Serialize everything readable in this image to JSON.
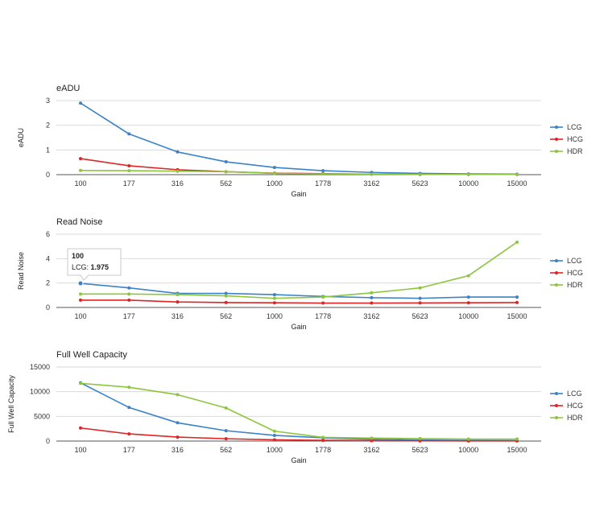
{
  "colors": {
    "LCG": "#3b82c8",
    "HCG": "#e02424",
    "HDR": "#8cc63f"
  },
  "chart_data": [
    {
      "type": "line",
      "title": "eADU",
      "xlabel": "Gain",
      "ylabel": "eADU",
      "categories": [
        "100",
        "177",
        "316",
        "562",
        "1000",
        "1778",
        "3162",
        "5623",
        "10000",
        "15000"
      ],
      "ylim": [
        0,
        3
      ],
      "yticks": [
        "0",
        "1",
        "2",
        "3"
      ],
      "series": [
        {
          "name": "LCG",
          "values": [
            2.9,
            1.65,
            0.92,
            0.52,
            0.29,
            0.16,
            0.09,
            0.05,
            0.03,
            0.02
          ]
        },
        {
          "name": "HCG",
          "values": [
            0.65,
            0.36,
            0.2,
            0.12,
            0.06,
            0.04,
            0.02,
            0.01,
            0.01,
            0.01
          ]
        },
        {
          "name": "HDR",
          "values": [
            0.17,
            0.16,
            0.14,
            0.12,
            0.05,
            0.03,
            0.02,
            0.01,
            0.01,
            0.01
          ]
        }
      ],
      "legend": "right"
    },
    {
      "type": "line",
      "title": "Read Noise",
      "xlabel": "Gain",
      "ylabel": "Read Noise",
      "categories": [
        "100",
        "177",
        "316",
        "562",
        "1000",
        "1778",
        "3162",
        "5623",
        "10000",
        "15000"
      ],
      "ylim": [
        0,
        6
      ],
      "yticks": [
        "0",
        "2",
        "4",
        "6"
      ],
      "series": [
        {
          "name": "LCG",
          "values": [
            1.975,
            1.6,
            1.15,
            1.15,
            1.05,
            0.9,
            0.8,
            0.75,
            0.85,
            0.85
          ]
        },
        {
          "name": "HCG",
          "values": [
            0.6,
            0.6,
            0.45,
            0.4,
            0.38,
            0.36,
            0.36,
            0.37,
            0.38,
            0.4
          ]
        },
        {
          "name": "HDR",
          "values": [
            1.1,
            1.1,
            1.05,
            0.95,
            0.75,
            0.85,
            1.2,
            1.6,
            2.6,
            5.35
          ]
        }
      ],
      "legend": "right",
      "tooltip": {
        "category": "100",
        "series": "LCG",
        "label": "LCG: ",
        "value": "1.975"
      }
    },
    {
      "type": "line",
      "title": "Full Well Capacity",
      "xlabel": "Gain",
      "ylabel": "Full Well Capacity",
      "categories": [
        "100",
        "177",
        "316",
        "562",
        "1000",
        "1778",
        "3162",
        "5623",
        "10000",
        "15000"
      ],
      "ylim": [
        0,
        15000
      ],
      "yticks": [
        "0",
        "5000",
        "10000",
        "15000"
      ],
      "series": [
        {
          "name": "LCG",
          "values": [
            11800,
            6800,
            3700,
            2100,
            1150,
            650,
            370,
            210,
            120,
            80
          ]
        },
        {
          "name": "HCG",
          "values": [
            2650,
            1450,
            800,
            470,
            250,
            150,
            90,
            50,
            30,
            20
          ]
        },
        {
          "name": "HDR",
          "values": [
            11700,
            10900,
            9400,
            6700,
            2000,
            750,
            600,
            500,
            400,
            400
          ]
        }
      ],
      "legend": "right"
    }
  ]
}
